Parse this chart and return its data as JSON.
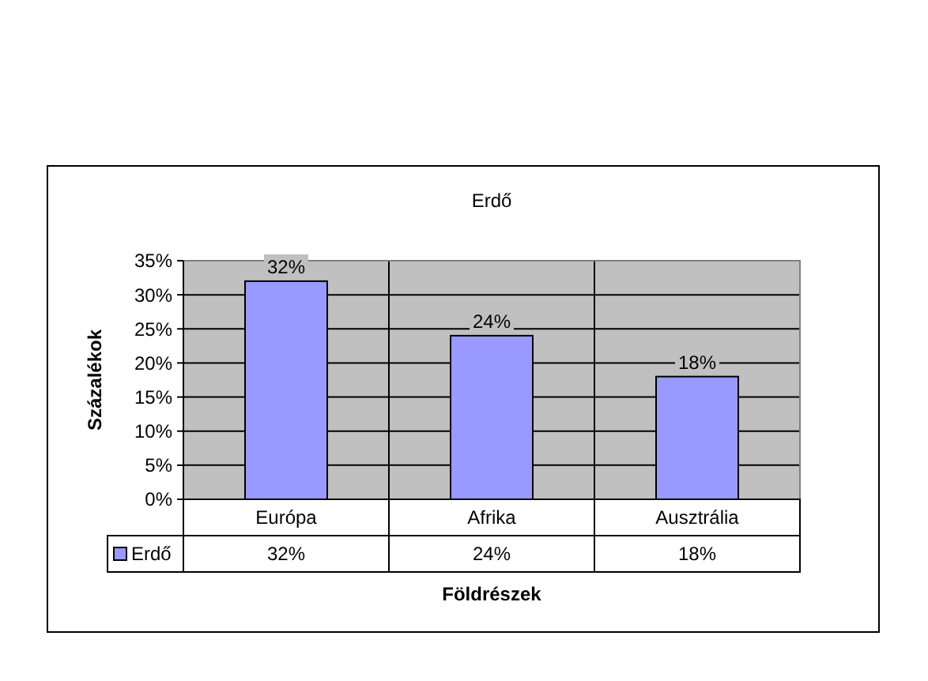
{
  "chart_data": {
    "type": "bar",
    "title": "Erdő",
    "xlabel": "Földrészek",
    "ylabel": "Százalékok",
    "categories": [
      "Európa",
      "Afrika",
      "Ausztrália"
    ],
    "series": [
      {
        "name": "Erdő",
        "color": "#9999ff",
        "values": [
          32,
          24,
          18
        ],
        "value_labels": [
          "32%",
          "24%",
          "18%"
        ]
      }
    ],
    "ylim": [
      0,
      35
    ],
    "yticks": [
      {
        "value": 0,
        "label": "0%"
      },
      {
        "value": 5,
        "label": "5%"
      },
      {
        "value": 10,
        "label": "10%"
      },
      {
        "value": 15,
        "label": "15%"
      },
      {
        "value": 20,
        "label": "20%"
      },
      {
        "value": 25,
        "label": "25%"
      },
      {
        "value": 30,
        "label": "30%"
      },
      {
        "value": 35,
        "label": "35%"
      }
    ],
    "grid": "y",
    "legend": "bottom"
  }
}
